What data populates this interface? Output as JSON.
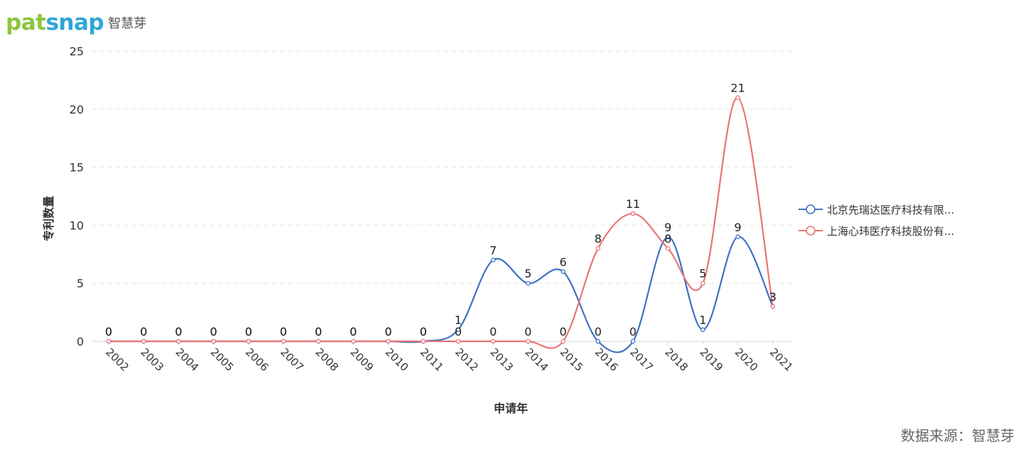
{
  "brand": {
    "logo_text_part1": "pat",
    "logo_text_part2": "snap",
    "sub": "智慧芽"
  },
  "footer": {
    "source": "数据来源：智慧芽"
  },
  "chart_data": {
    "type": "line",
    "xlabel": "申请年",
    "ylabel": "专利数量",
    "ylim": [
      0,
      25
    ],
    "yticks": [
      0,
      5,
      10,
      15,
      20,
      25
    ],
    "grid": true,
    "smooth": true,
    "legend_position": "right",
    "categories": [
      "2002",
      "2003",
      "2004",
      "2005",
      "2006",
      "2007",
      "2008",
      "2009",
      "2010",
      "2011",
      "2012",
      "2013",
      "2014",
      "2015",
      "2016",
      "2017",
      "2018",
      "2019",
      "2020",
      "2021"
    ],
    "series": [
      {
        "name": "北京先瑞达医疗科技有限...",
        "color": "#3d72c3",
        "values": [
          0,
          0,
          0,
          0,
          0,
          0,
          0,
          0,
          0,
          0,
          1,
          7,
          5,
          6,
          0,
          0,
          9,
          1,
          9,
          3
        ]
      },
      {
        "name": "上海心玮医疗科技股份有...",
        "color": "#e87478",
        "values": [
          0,
          0,
          0,
          0,
          0,
          0,
          0,
          0,
          0,
          0,
          0,
          0,
          0,
          0,
          8,
          11,
          8,
          5,
          21,
          3
        ]
      }
    ]
  }
}
